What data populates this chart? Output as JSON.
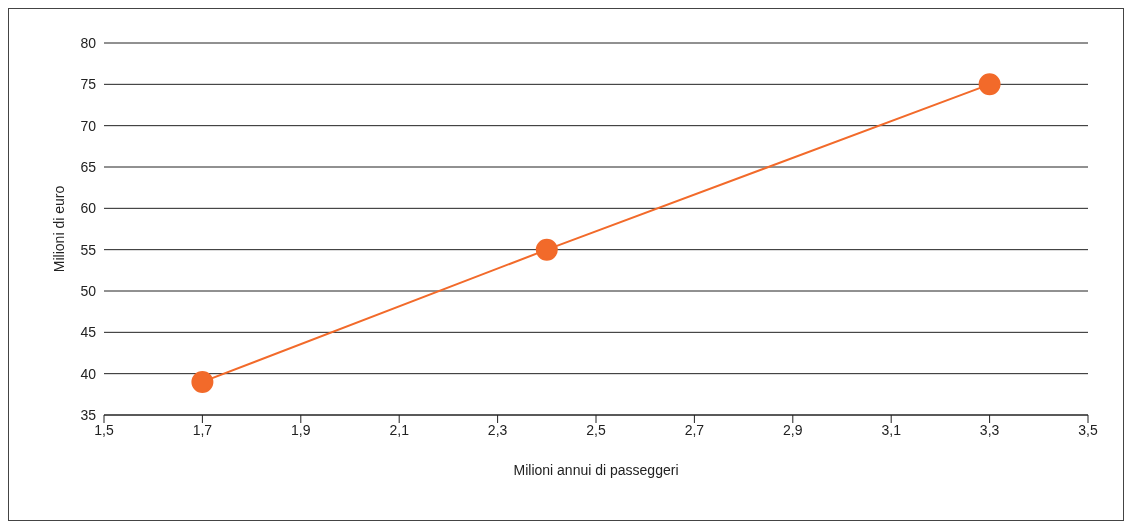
{
  "chart_data": {
    "type": "line",
    "xlabel": "Milioni annui di passeggeri",
    "ylabel": "Milioni di euro",
    "x": [
      1.7,
      2.4,
      3.3
    ],
    "series": [
      {
        "color": "#f26a2a",
        "values": [
          39,
          55,
          75
        ]
      }
    ],
    "xlim": [
      1.5,
      3.5
    ],
    "xticks": [
      {
        "value": 1.5,
        "label": "1,5"
      },
      {
        "value": 1.7,
        "label": "1,7"
      },
      {
        "value": 1.9,
        "label": "1,9"
      },
      {
        "value": 2.1,
        "label": "2,1"
      },
      {
        "value": 2.3,
        "label": "2,3"
      },
      {
        "value": 2.5,
        "label": "2,5"
      },
      {
        "value": 2.7,
        "label": "2,7"
      },
      {
        "value": 2.9,
        "label": "2,9"
      },
      {
        "value": 3.1,
        "label": "3,1"
      },
      {
        "value": 3.3,
        "label": "3,3"
      },
      {
        "value": 3.5,
        "label": "3,5"
      }
    ],
    "ylim": [
      35,
      80
    ],
    "yticks": [
      35,
      40,
      45,
      50,
      55,
      60,
      65,
      70,
      75,
      80
    ],
    "grid": "y",
    "marker": "circle",
    "line_style": "solid",
    "legend": false
  }
}
